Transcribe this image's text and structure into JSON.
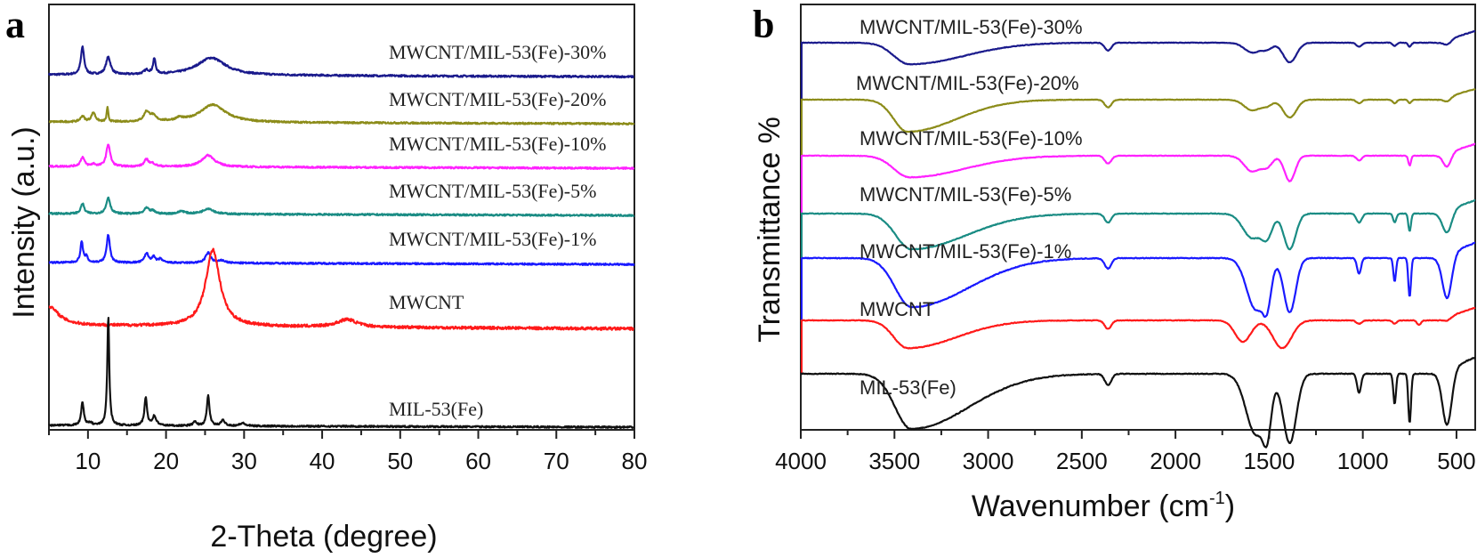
{
  "chart_data": [
    {
      "panel": "a",
      "type": "line",
      "title": "",
      "xlabel": "2-Theta (degree)",
      "ylabel": "Intensity (a.u.)",
      "xlim": [
        5,
        80
      ],
      "xticks": [
        10,
        20,
        30,
        40,
        50,
        60,
        70,
        80
      ],
      "xtick_labels": [
        "10",
        "20",
        "30",
        "40",
        "50",
        "60",
        "70",
        "80"
      ],
      "y_ticks_shown": false,
      "grid": false,
      "legend": "inline labels to the right of each curve",
      "series": [
        {
          "name": "MWCNT/MIL-53(Fe)-30%",
          "color": "#1a1a8c",
          "offset": 6,
          "baseline": 0.0,
          "peaks": [
            [
              9.3,
              0.55,
              0.25
            ],
            [
              12.6,
              0.35,
              0.35
            ],
            [
              17.5,
              0.08,
              0.4
            ],
            [
              18.5,
              0.3,
              0.2
            ],
            [
              25.8,
              0.35,
              2.2
            ]
          ]
        },
        {
          "name": "MWCNT/MIL-53(Fe)-20%",
          "color": "#8c8c1a",
          "offset": 5,
          "baseline": 0.0,
          "peaks": [
            [
              9.3,
              0.12,
              0.3
            ],
            [
              10.7,
              0.2,
              0.3
            ],
            [
              12.5,
              0.3,
              0.12
            ],
            [
              17.5,
              0.2,
              0.4
            ],
            [
              18.3,
              0.12,
              0.5
            ],
            [
              21.7,
              0.06,
              0.5
            ],
            [
              26.0,
              0.38,
              2.0
            ]
          ]
        },
        {
          "name": "MWCNT/MIL-53(Fe)-10%",
          "color": "#ff22ff",
          "offset": 4,
          "baseline": 0.0,
          "peaks": [
            [
              9.3,
              0.2,
              0.3
            ],
            [
              10.7,
              0.05,
              0.3
            ],
            [
              12.6,
              0.48,
              0.3
            ],
            [
              17.5,
              0.15,
              0.35
            ],
            [
              18.3,
              0.06,
              0.4
            ],
            [
              25.4,
              0.25,
              1.0
            ]
          ]
        },
        {
          "name": "MWCNT/MIL-53(Fe)-5%",
          "color": "#1a8c84",
          "offset": 3,
          "baseline": 0.0,
          "peaks": [
            [
              9.3,
              0.22,
              0.25
            ],
            [
              12.6,
              0.35,
              0.3
            ],
            [
              17.5,
              0.12,
              0.35
            ],
            [
              18.3,
              0.06,
              0.4
            ],
            [
              22.0,
              0.06,
              0.5
            ],
            [
              25.4,
              0.12,
              0.8
            ]
          ]
        },
        {
          "name": "MWCNT/MIL-53(Fe)-1%",
          "color": "#1a1aff",
          "offset": 2,
          "baseline": 0.0,
          "peaks": [
            [
              9.2,
              0.45,
              0.2
            ],
            [
              9.8,
              0.12,
              0.2
            ],
            [
              12.6,
              0.6,
              0.25
            ],
            [
              17.5,
              0.2,
              0.3
            ],
            [
              18.4,
              0.12,
              0.3
            ],
            [
              19.3,
              0.08,
              0.3
            ],
            [
              25.4,
              0.22,
              0.4
            ],
            [
              27.2,
              0.05,
              0.5
            ]
          ]
        },
        {
          "name": "MWCNT",
          "color": "#ff1a1a",
          "offset": 1,
          "baseline": 0.0,
          "peaks": [
            [
              5.0,
              0.25,
              1.5
            ],
            [
              26.0,
              1.0,
              1.1
            ],
            [
              43.2,
              0.1,
              1.5
            ]
          ]
        },
        {
          "name": "MIL-53(Fe)",
          "color": "#111111",
          "offset": 0,
          "baseline": 0.0,
          "peaks": [
            [
              9.3,
              0.5,
              0.2
            ],
            [
              10.3,
              0.05,
              0.3
            ],
            [
              12.6,
              2.35,
              0.15
            ],
            [
              17.4,
              0.6,
              0.2
            ],
            [
              18.5,
              0.2,
              0.3
            ],
            [
              23.7,
              0.08,
              0.3
            ],
            [
              25.4,
              0.65,
              0.2
            ],
            [
              27.3,
              0.12,
              0.3
            ],
            [
              29.8,
              0.06,
              0.4
            ]
          ]
        }
      ]
    },
    {
      "panel": "b",
      "type": "line",
      "title": "",
      "xlabel": "Wavenumber (cm",
      "xlabel_sup": "-1",
      "xlabel_tail": ")",
      "ylabel": "Transmittance %",
      "xlim": [
        4000,
        400
      ],
      "xticks": [
        4000,
        3500,
        3000,
        2500,
        2000,
        1500,
        1000,
        500
      ],
      "xtick_labels": [
        "4000",
        "3500",
        "3000",
        "2500",
        "2000",
        "1500",
        "1000",
        "500"
      ],
      "y_ticks_shown": false,
      "grid": false,
      "legend": "inline labels above each curve",
      "series": [
        {
          "name": "MWCNT/MIL-53(Fe)-30%",
          "color": "#1a1a8c",
          "offset": 6,
          "bands": [
            [
              3420,
              0.55,
              260
            ],
            [
              2360,
              0.2,
              25
            ],
            [
              1590,
              0.25,
              60
            ],
            [
              1510,
              0.15,
              40
            ],
            [
              1390,
              0.5,
              50
            ],
            [
              1020,
              0.1,
              20
            ],
            [
              830,
              0.08,
              15
            ],
            [
              750,
              0.1,
              12
            ],
            [
              550,
              0.12,
              30
            ]
          ]
        },
        {
          "name": "MWCNT/MIL-53(Fe)-20%",
          "color": "#8c8c1a",
          "offset": 5,
          "bands": [
            [
              3430,
              0.9,
              230
            ],
            [
              2360,
              0.22,
              25
            ],
            [
              1590,
              0.3,
              60
            ],
            [
              1510,
              0.15,
              40
            ],
            [
              1390,
              0.5,
              50
            ],
            [
              1020,
              0.1,
              20
            ],
            [
              830,
              0.1,
              15
            ],
            [
              750,
              0.1,
              12
            ],
            [
              550,
              0.12,
              30
            ]
          ]
        },
        {
          "name": "MWCNT/MIL-53(Fe)-10%",
          "color": "#ff22ff",
          "offset": 4,
          "bands": [
            [
              3420,
              0.55,
              260
            ],
            [
              2360,
              0.2,
              25
            ],
            [
              1590,
              0.4,
              60
            ],
            [
              1510,
              0.25,
              40
            ],
            [
              1390,
              0.65,
              40
            ],
            [
              1020,
              0.12,
              20
            ],
            [
              750,
              0.25,
              10
            ],
            [
              550,
              0.35,
              30
            ]
          ]
        },
        {
          "name": "MWCNT/MIL-53(Fe)-5%",
          "color": "#1a8c84",
          "offset": 3,
          "bands": [
            [
              3410,
              0.8,
              260
            ],
            [
              2360,
              0.2,
              25
            ],
            [
              1590,
              0.55,
              70
            ],
            [
              1510,
              0.45,
              40
            ],
            [
              1390,
              0.8,
              45
            ],
            [
              1020,
              0.2,
              20
            ],
            [
              830,
              0.2,
              12
            ],
            [
              750,
              0.4,
              10
            ],
            [
              550,
              0.5,
              35
            ]
          ]
        },
        {
          "name": "MWCNT/MIL-53(Fe)-1%",
          "color": "#1a1aff",
          "offset": 2,
          "bands": [
            [
              3410,
              0.95,
              270
            ],
            [
              2360,
              0.2,
              25
            ],
            [
              1570,
              1.0,
              70
            ],
            [
              1510,
              0.6,
              30
            ],
            [
              1390,
              1.05,
              45
            ],
            [
              1020,
              0.3,
              15
            ],
            [
              830,
              0.45,
              10
            ],
            [
              750,
              0.75,
              10
            ],
            [
              550,
              0.85,
              35
            ]
          ]
        },
        {
          "name": "MWCNT",
          "color": "#ff1a1a",
          "offset": 1,
          "bands": [
            [
              3430,
              0.65,
              230
            ],
            [
              2360,
              0.2,
              25
            ],
            [
              1640,
              0.5,
              60
            ],
            [
              1430,
              0.65,
              70
            ],
            [
              1020,
              0.08,
              20
            ],
            [
              830,
              0.08,
              15
            ],
            [
              700,
              0.1,
              15
            ],
            [
              550,
              0.08,
              30
            ]
          ]
        },
        {
          "name": "MIL-53(Fe)",
          "color": "#111111",
          "offset": 0,
          "bands": [
            [
              3410,
              1.0,
              270
            ],
            [
              2360,
              0.2,
              25
            ],
            [
              1570,
              1.1,
              75
            ],
            [
              1510,
              0.7,
              30
            ],
            [
              1390,
              1.25,
              50
            ],
            [
              1020,
              0.35,
              15
            ],
            [
              830,
              0.55,
              10
            ],
            [
              750,
              0.9,
              10
            ],
            [
              550,
              1.0,
              35
            ]
          ]
        }
      ]
    }
  ],
  "panel_letters": {
    "a": "a",
    "b": "b"
  },
  "xrd_labels": [
    "MWCNT/MIL-53(Fe)-30%",
    "MWCNT/MIL-53(Fe)-20%",
    "MWCNT/MIL-53(Fe)-10%",
    "MWCNT/MIL-53(Fe)-5%",
    "MWCNT/MIL-53(Fe)-1%",
    "MWCNT",
    "MIL-53(Fe)"
  ],
  "ftir_labels": [
    "MWCNT/MIL-53(Fe)-30%",
    "MWCNT/MIL-53(Fe)-20%",
    "MWCNT/MIL-53(Fe)-10%",
    "MWCNT/MIL-53(Fe)-5%",
    "MWCNT/MIL-53(Fe)-1%",
    "MWCNT",
    "MIL-53(Fe)"
  ]
}
